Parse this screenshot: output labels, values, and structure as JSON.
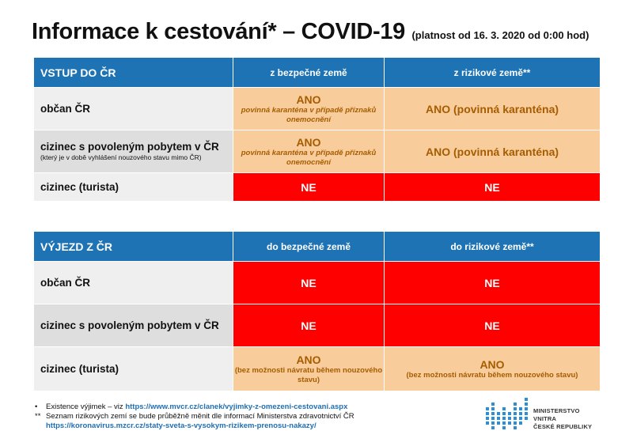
{
  "title": {
    "main": "Informace k cestování* – COVID-19",
    "sub": "(platnost od 16. 3. 2020 od 0:00 hod)"
  },
  "entry": {
    "header": [
      "VSTUP DO ČR",
      "z bezpečné země",
      "z rizikové země**"
    ],
    "rows": [
      {
        "label": "občan ČR",
        "sublabel": "",
        "col1": {
          "main": "ANO",
          "note": "povinná karanténa v případě příznaků onemocnění"
        },
        "col2": {
          "main": "ANO (povinná karanténa)"
        }
      },
      {
        "label": "cizinec s povoleným pobytem v ČR",
        "sublabel": "(který je v době vyhlášení nouzového stavu mimo ČR)",
        "col1": {
          "main": "ANO",
          "note": "povinná karanténa v případě příznaků onemocnění"
        },
        "col2": {
          "main": "ANO (povinná karanténa)"
        }
      },
      {
        "label": "cizinec (turista)",
        "col1": "NE",
        "col2": "NE"
      }
    ]
  },
  "exit": {
    "header": [
      "VÝJEZD Z ČR",
      "do bezpečné země",
      "do rizikové země**"
    ],
    "rows": [
      {
        "label": "občan ČR",
        "col1": "NE",
        "col2": "NE"
      },
      {
        "label": "cizinec s povoleným pobytem v ČR",
        "col1": "NE",
        "col2": "NE"
      },
      {
        "label": "cizinec (turista)",
        "col1": {
          "main": "ANO",
          "note": "(bez možnosti návratu během nouzového stavu)"
        },
        "col2": {
          "main": "ANO",
          "note": "(bez možnosti návratu během nouzového stavu)"
        }
      }
    ]
  },
  "footnotes": {
    "n1_marker": "•",
    "n1_text": "Existence výjimek – viz",
    "n1_url": "https://www.mvcr.cz/clanek/vyjimky-z-omezeni-cestovani.aspx",
    "n2_marker": "**",
    "n2_text": "Seznam rizikových zemí se bude průběžně měnit dle informací Ministerstva zdravotnictví ČR",
    "n2_url": "https://koronavirus.mzcr.cz/staty-sveta-s-vysokym-rizikem-prenosu-nakazy/"
  },
  "logo": {
    "line1": "MINISTERSTVO VNITRA",
    "line2": "ČESKÉ REPUBLIKY"
  },
  "colors": {
    "header_blue": "#1e73b5",
    "yes_orange": "#f9cd9b",
    "yes_text": "#a65c00",
    "no_red": "#ff0000",
    "link_blue": "#1e6fb5"
  }
}
